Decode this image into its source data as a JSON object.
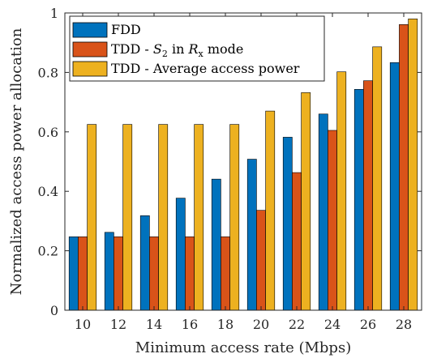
{
  "chart_data": {
    "type": "bar",
    "xlabel": "Minimum access rate (Mbps)",
    "ylabel": "Normalized access power allocation",
    "categories": [
      "10",
      "12",
      "14",
      "16",
      "18",
      "20",
      "22",
      "24",
      "26",
      "28"
    ],
    "ylim": [
      0,
      1
    ],
    "yticks": [
      "0",
      "0.2",
      "0.4",
      "0.6",
      "0.8",
      "1"
    ],
    "grid": false,
    "legend_position": "top-left",
    "series": [
      {
        "name": "FDD",
        "color": "#0072BD",
        "values": [
          0.247,
          0.262,
          0.318,
          0.377,
          0.441,
          0.508,
          0.582,
          0.66,
          0.743,
          0.833
        ]
      },
      {
        "name_prefix": "TDD - ",
        "name_math": "S",
        "name_math_sub": "2",
        "name_mid": " in ",
        "name_math2": "R",
        "name_math2_sub": "x",
        "name_suffix": " mode",
        "color": "#D95319",
        "values": [
          0.247,
          0.247,
          0.247,
          0.247,
          0.247,
          0.336,
          0.463,
          0.605,
          0.772,
          0.961
        ]
      },
      {
        "name": "TDD - Average access power",
        "color": "#EDB120",
        "values": [
          0.625,
          0.625,
          0.625,
          0.625,
          0.625,
          0.67,
          0.732,
          0.802,
          0.886,
          0.98
        ]
      }
    ]
  }
}
